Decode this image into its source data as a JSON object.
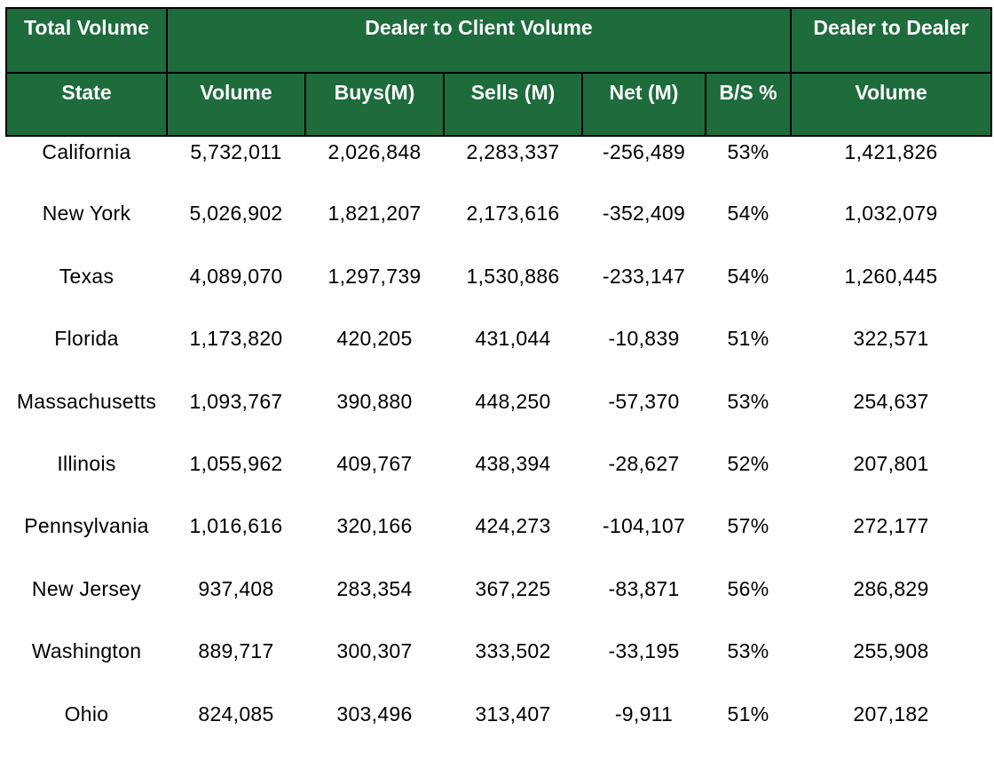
{
  "chart_data": {
    "type": "table",
    "header_groups": [
      {
        "label": "Total Volume",
        "span": 1
      },
      {
        "label": "Dealer to Client Volume",
        "span": 5
      },
      {
        "label": "Dealer to Dealer",
        "span": 1
      }
    ],
    "columns": [
      "State",
      "Volume",
      "Buys(M)",
      "Sells (M)",
      "Net (M)",
      "B/S %",
      "Volume"
    ],
    "rows": [
      [
        "California",
        "5,732,011",
        "2,026,848",
        "2,283,337",
        "-256,489",
        "53%",
        "1,421,826"
      ],
      [
        "New York",
        "5,026,902",
        "1,821,207",
        "2,173,616",
        "-352,409",
        "54%",
        "1,032,079"
      ],
      [
        "Texas",
        "4,089,070",
        "1,297,739",
        "1,530,886",
        "-233,147",
        "54%",
        "1,260,445"
      ],
      [
        "Florida",
        "1,173,820",
        "420,205",
        "431,044",
        "-10,839",
        "51%",
        "322,571"
      ],
      [
        "Massachusetts",
        "1,093,767",
        "390,880",
        "448,250",
        "-57,370",
        "53%",
        "254,637"
      ],
      [
        "Illinois",
        "1,055,962",
        "409,767",
        "438,394",
        "-28,627",
        "52%",
        "207,801"
      ],
      [
        "Pennsylvania",
        "1,016,616",
        "320,166",
        "424,273",
        "-104,107",
        "57%",
        "272,177"
      ],
      [
        "New Jersey",
        "937,408",
        "283,354",
        "367,225",
        "-83,871",
        "56%",
        "286,829"
      ],
      [
        "Washington",
        "889,717",
        "300,307",
        "333,502",
        "-33,195",
        "53%",
        "255,908"
      ],
      [
        "Ohio",
        "824,085",
        "303,496",
        "313,407",
        "-9,911",
        "51%",
        "207,182"
      ]
    ],
    "colors": {
      "header_bg": "#1e6b3c",
      "header_text": "#ffffff",
      "body_text": "#000000"
    }
  }
}
